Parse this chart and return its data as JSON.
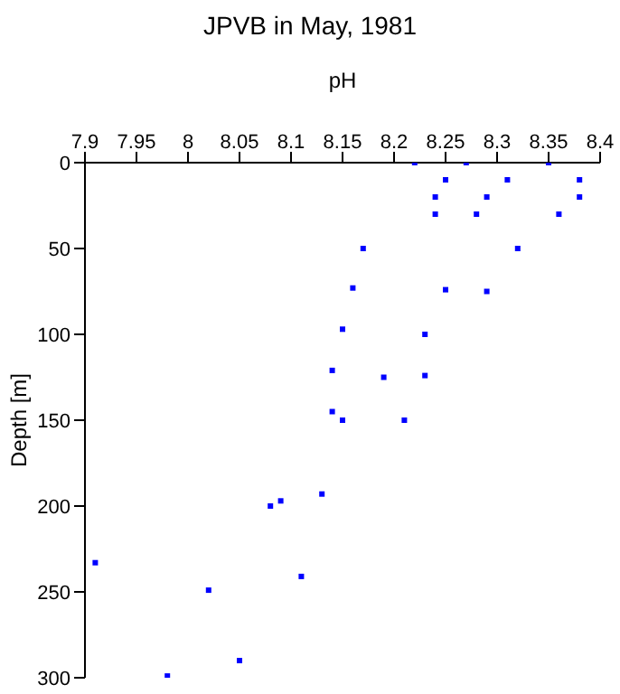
{
  "chart_data": {
    "type": "scatter",
    "title": "JPVB in May, 1981",
    "xlabel": "pH",
    "ylabel": "Depth [m]",
    "x": [
      8.22,
      8.27,
      8.35,
      8.25,
      8.31,
      8.38,
      8.24,
      8.29,
      8.38,
      8.24,
      8.28,
      8.36,
      8.17,
      8.32,
      8.16,
      8.25,
      8.29,
      8.15,
      8.23,
      8.14,
      8.19,
      8.23,
      8.14,
      8.15,
      8.21,
      8.08,
      8.09,
      8.13,
      7.91,
      8.02,
      8.11,
      8.05,
      7.98
    ],
    "values": [
      0,
      0,
      0,
      10,
      10,
      10,
      20,
      20,
      20,
      30,
      30,
      30,
      50,
      50,
      73,
      74,
      75,
      97,
      100,
      121,
      125,
      124,
      145,
      150,
      150,
      200,
      197,
      193,
      233,
      249,
      241,
      290,
      299
    ],
    "color": "#0000ff",
    "marker": "square",
    "xlim": [
      7.9,
      8.4
    ],
    "xticks": [
      7.9,
      7.95,
      8,
      8.05,
      8.1,
      8.15,
      8.2,
      8.25,
      8.3,
      8.35,
      8.4
    ],
    "ylim": [
      300,
      0
    ],
    "yticks": [
      0,
      50,
      100,
      150,
      200,
      250,
      300
    ],
    "grid": false,
    "legend": false
  }
}
